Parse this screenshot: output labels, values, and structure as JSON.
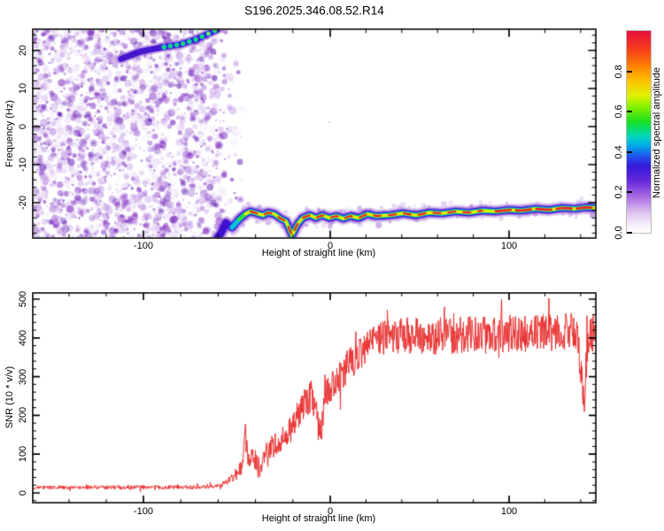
{
  "title": "S196.2025.346.08.52.R14",
  "chart_data": [
    {
      "type": "heatmap",
      "description": "Radio occultation power spectrogram: noisy purple background before signal emergence, carrier ridge exiting top of panel, and a multicolour (red-core) signal trace near -22 Hz across the right side",
      "xlabel": "Height of straight line (km)",
      "ylabel": "Frequency (Hz)",
      "xlim": [
        -160,
        149
      ],
      "ylim": [
        -29.5,
        25.8
      ],
      "xticks": [
        -100,
        0,
        100
      ],
      "xtick_labels": [
        "-100",
        "0",
        "100"
      ],
      "yticks": [
        20,
        10,
        0,
        -10,
        -20
      ],
      "ytick_labels": [
        "20",
        "10",
        "0",
        "-10",
        "-20"
      ],
      "minor_x_step_km": 20,
      "minor_y_step_hz": 2,
      "grid": false,
      "colorbar": {
        "label": "Normalized spectral amplitude",
        "ticks": [
          0.0,
          0.2,
          0.4,
          0.6,
          0.8
        ],
        "tick_labels": [
          "0.0",
          "0.2",
          "0.4",
          "0.6",
          "0.8"
        ],
        "range": [
          0,
          1
        ],
        "colormap_stops": [
          [
            0,
            "#ffffff"
          ],
          [
            4,
            "#f6eefb"
          ],
          [
            10,
            "#ddc2ef"
          ],
          [
            18,
            "#a868e0"
          ],
          [
            26,
            "#6428dc"
          ],
          [
            33,
            "#3318d8"
          ],
          [
            38,
            "#2255ee"
          ],
          [
            43,
            "#00a8e8"
          ],
          [
            48,
            "#00d8b8"
          ],
          [
            55,
            "#18e020"
          ],
          [
            62,
            "#7ef000"
          ],
          [
            68,
            "#e0f000"
          ],
          [
            75,
            "#ffc400"
          ],
          [
            83,
            "#ff7e00"
          ],
          [
            91,
            "#f63c1e"
          ],
          [
            100,
            "#e8103c"
          ]
        ]
      },
      "noise_region": {
        "start_km": -160,
        "full_until_km": -70,
        "end_km": -52,
        "palette": [
          "#efe3f9",
          "#dcc4f0",
          "#bf96e6",
          "#9a57d2",
          "#7a1fc0",
          "#5b0fb0"
        ]
      },
      "carrier_ridge_hz_vs_km": [
        [
          -112,
          17.8
        ],
        [
          -101,
          19.8
        ],
        [
          -89,
          20.9
        ],
        [
          -80,
          21.6
        ],
        [
          -72,
          22.9
        ],
        [
          -67,
          24.0
        ],
        [
          -62,
          25.1
        ],
        [
          -59,
          26.2
        ]
      ],
      "signal_trace_hz_vs_km": [
        [
          -61.6,
          -30.0
        ],
        [
          -58.3,
          -27.9
        ],
        [
          -55.9,
          -25.3
        ],
        [
          -52.6,
          -26.5
        ],
        [
          -48.8,
          -24.4
        ],
        [
          -45.5,
          -23.0
        ],
        [
          -42.7,
          -22.3
        ],
        [
          -39.3,
          -22.8
        ],
        [
          -36.0,
          -23.3
        ],
        [
          -33.2,
          -22.6
        ],
        [
          -29.9,
          -23.0
        ],
        [
          -26.5,
          -24.2
        ],
        [
          -23.7,
          -24.9
        ],
        [
          -20.4,
          -28.6
        ],
        [
          -17.5,
          -25.6
        ],
        [
          -14.7,
          -24.0
        ],
        [
          -10.9,
          -23.3
        ],
        [
          -7.6,
          -24.0
        ],
        [
          -4.3,
          -23.3
        ],
        [
          -0.5,
          -24.0
        ],
        [
          3.5,
          -23.5
        ],
        [
          7.4,
          -24.2
        ],
        [
          11.4,
          -23.5
        ],
        [
          15.8,
          -24.0
        ],
        [
          20.8,
          -23.0
        ],
        [
          25.7,
          -23.5
        ],
        [
          33.2,
          -23.3
        ],
        [
          40.6,
          -22.8
        ],
        [
          48.0,
          -23.3
        ],
        [
          55.4,
          -22.6
        ],
        [
          62.9,
          -22.8
        ],
        [
          70.3,
          -22.3
        ],
        [
          77.7,
          -22.6
        ],
        [
          85.1,
          -22.1
        ],
        [
          92.6,
          -22.3
        ],
        [
          100.0,
          -21.9
        ],
        [
          107.4,
          -22.1
        ],
        [
          114.9,
          -21.6
        ],
        [
          122.3,
          -21.9
        ],
        [
          129.7,
          -21.4
        ],
        [
          137.1,
          -21.6
        ],
        [
          143.1,
          -21.2
        ],
        [
          148.0,
          -21.4
        ]
      ],
      "trace_palette": {
        "outer_glow": "#9660d7",
        "dark_blue": "#3f10d0",
        "blue": "#2244ea",
        "cyan": "#00c8da",
        "green": "#30e030",
        "yellow": "#e8f000",
        "red_core": "#ee2130"
      }
    },
    {
      "type": "line",
      "xlabel": "Height of straight line (km)",
      "ylabel": "SNR (10 * v/v)",
      "xlim": [
        -160,
        149
      ],
      "ylim": [
        -27,
        518
      ],
      "xticks": [
        -100,
        0,
        100
      ],
      "xtick_labels": [
        "-100",
        "0",
        "100"
      ],
      "yticks": [
        500,
        400,
        300,
        200,
        100,
        0
      ],
      "ytick_labels": [
        "500",
        "400",
        "300",
        "200",
        "100",
        "0"
      ],
      "minor_x_step_km": 20,
      "minor_y_step": 20,
      "grid": false,
      "series": [
        {
          "name": "SNR",
          "color": "#e93030",
          "envelope_km_snr": [
            [
              -160,
              14
            ],
            [
              -70,
              15
            ],
            [
              -58,
              20
            ],
            [
              -52,
              40
            ],
            [
              -47,
              70
            ],
            [
              -45.5,
              180
            ],
            [
              -44,
              75
            ],
            [
              -41,
              95
            ],
            [
              -38,
              60
            ],
            [
              -33,
              115
            ],
            [
              -28,
              130
            ],
            [
              -23,
              150
            ],
            [
              -18,
              185
            ],
            [
              -13,
              235
            ],
            [
              -10,
              250
            ],
            [
              -7,
              190
            ],
            [
              -5,
              150
            ],
            [
              -3,
              260
            ],
            [
              0,
              270
            ],
            [
              4,
              300
            ],
            [
              8,
              320
            ],
            [
              13,
              345
            ],
            [
              18,
              370
            ],
            [
              24,
              390
            ],
            [
              30,
              405
            ],
            [
              60,
              405
            ],
            [
              90,
              410
            ],
            [
              120,
              413
            ],
            [
              138,
              418
            ],
            [
              140.5,
              300
            ],
            [
              142,
              250
            ],
            [
              144,
              390
            ],
            [
              147,
              415
            ],
            [
              149,
              400
            ]
          ],
          "noise_amplitude_km": [
            [
              -160,
              5
            ],
            [
              -70,
              5
            ],
            [
              -55,
              9
            ],
            [
              -45,
              25
            ],
            [
              -35,
              30
            ],
            [
              -20,
              35
            ],
            [
              -5,
              45
            ],
            [
              10,
              45
            ],
            [
              30,
              48
            ],
            [
              149,
              48
            ]
          ]
        }
      ]
    }
  ],
  "frame_color": "#3d3d3d",
  "tick_color": "#000000"
}
